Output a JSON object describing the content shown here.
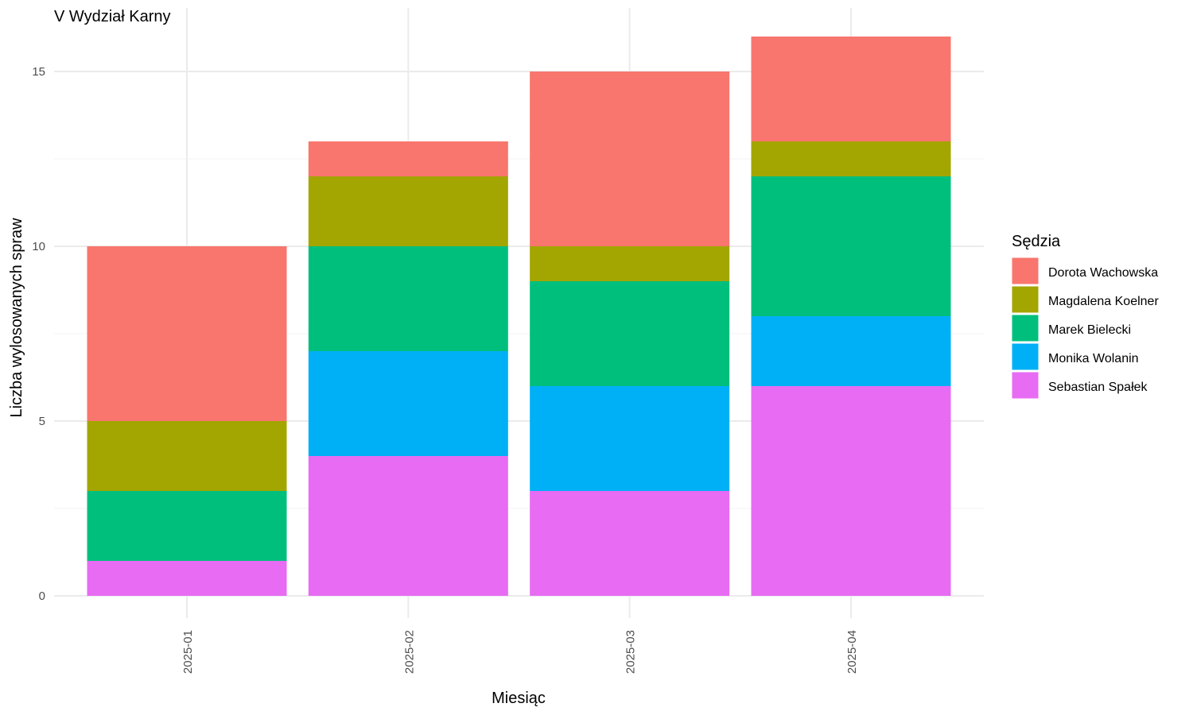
{
  "chart_data": {
    "type": "bar",
    "stacked": true,
    "title": "V Wydział Karny",
    "xlabel": "Miesiąc",
    "ylabel": "Liczba wylosowanych spraw",
    "categories": [
      "2025-01",
      "2025-02",
      "2025-03",
      "2025-04"
    ],
    "ylim": [
      0,
      16.5
    ],
    "yticks": [
      0,
      5,
      10,
      15
    ],
    "grid": true,
    "legend": {
      "title": "Sędzia",
      "position": "right"
    },
    "series": [
      {
        "name": "Sebastian Spałek",
        "color": "#E76BF3",
        "values": [
          1,
          4,
          3,
          6
        ]
      },
      {
        "name": "Monika Wolanin",
        "color": "#00B0F6",
        "values": [
          0,
          3,
          3,
          2
        ]
      },
      {
        "name": "Marek Bielecki",
        "color": "#00BF7D",
        "values": [
          2,
          3,
          3,
          4
        ]
      },
      {
        "name": "Magdalena Koelner",
        "color": "#A3A500",
        "values": [
          2,
          2,
          1,
          1
        ]
      },
      {
        "name": "Dorota Wachowska",
        "color": "#F8766D",
        "values": [
          5,
          1,
          5,
          3
        ]
      }
    ],
    "legend_order": [
      "Dorota Wachowska",
      "Magdalena Koelner",
      "Marek Bielecki",
      "Monika Wolanin",
      "Sebastian Spałek"
    ]
  }
}
